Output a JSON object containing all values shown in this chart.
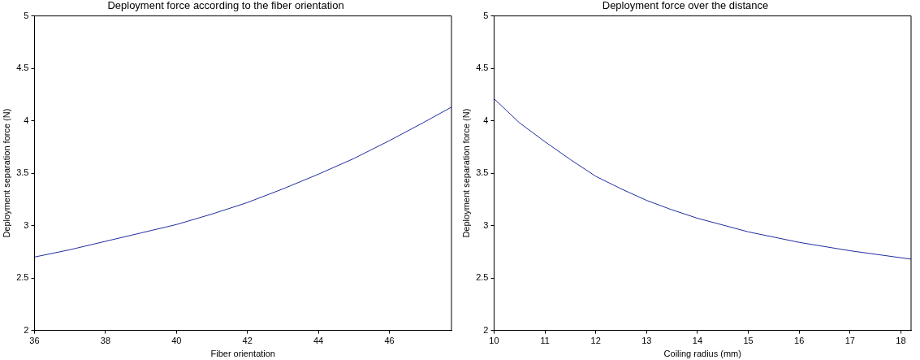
{
  "chart_data": [
    {
      "type": "line",
      "title": "Deployment force according to the fiber orientation",
      "xlabel": "Fiber orientation",
      "ylabel": "Deployment separation force (N)",
      "x": [
        36,
        37,
        38,
        39,
        40,
        41,
        42,
        43,
        44,
        45,
        46,
        47,
        47.75
      ],
      "series": [
        {
          "color": "#1f2d9e",
          "values": [
            2.7,
            2.77,
            2.85,
            2.93,
            3.01,
            3.11,
            3.22,
            3.35,
            3.49,
            3.64,
            3.81,
            3.99,
            4.13
          ]
        }
      ],
      "xlim": [
        36,
        47.75
      ],
      "xticks": [
        36,
        38,
        40,
        42,
        44,
        46
      ],
      "ylim": [
        2,
        5
      ],
      "yticks": [
        2,
        2.5,
        3,
        3.5,
        4,
        4.5,
        5
      ],
      "grid": false,
      "legend": false,
      "marker": "none",
      "line_style": "solid"
    },
    {
      "type": "line",
      "title": "Deployment force over the distance",
      "xlabel": "Coiling radius (mm)",
      "ylabel": "Deployment separation force (N)",
      "x": [
        10,
        10.5,
        11,
        11.5,
        12,
        12.5,
        13,
        13.5,
        14,
        15,
        16,
        17,
        18.2
      ],
      "series": [
        {
          "color": "#1f2d9e",
          "values": [
            4.21,
            3.98,
            3.8,
            3.63,
            3.47,
            3.35,
            3.24,
            3.15,
            3.07,
            2.94,
            2.84,
            2.76,
            2.68
          ]
        }
      ],
      "xlim": [
        10,
        18.2
      ],
      "xticks": [
        10,
        11,
        12,
        13,
        14,
        15,
        16,
        17,
        18
      ],
      "ylim": [
        2,
        5
      ],
      "yticks": [
        2,
        2.5,
        3,
        3.5,
        4,
        4.5,
        5
      ],
      "grid": false,
      "legend": false,
      "marker": "none",
      "line_style": "solid"
    }
  ]
}
